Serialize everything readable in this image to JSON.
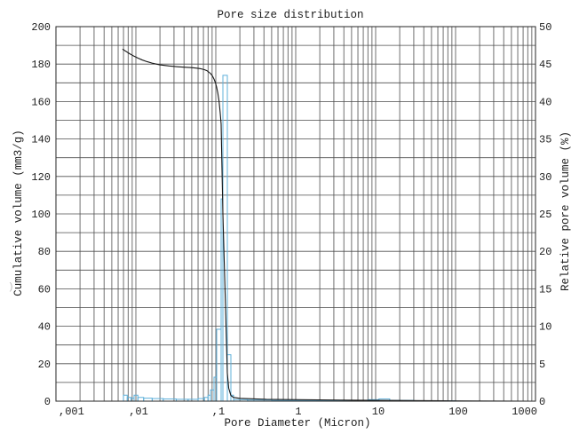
{
  "chart_data": {
    "type": "line",
    "title": "Pore size distribution",
    "xlabel": "Pore Diameter (Micron)",
    "ylabel": "Cumulative volume (mm3/g)",
    "y2label": "Relative pore volume (%)",
    "x_axis": {
      "scale": "log",
      "range": [
        0.001,
        1000
      ],
      "ticks": [
        0.001,
        0.01,
        0.1,
        1,
        10,
        100,
        1000
      ],
      "tick_labels": [
        ",001",
        ",01",
        ",1",
        "1",
        "10",
        "100",
        "1000"
      ]
    },
    "y_axis": {
      "range": [
        0,
        200
      ],
      "ticks": [
        0,
        20,
        40,
        60,
        80,
        100,
        120,
        140,
        160,
        180,
        200
      ]
    },
    "y2_axis": {
      "range": [
        0,
        50
      ],
      "ticks": [
        0,
        5,
        10,
        15,
        20,
        25,
        30,
        35,
        40,
        45,
        50
      ]
    },
    "grid": {
      "shown": true,
      "x_minor": true,
      "y_step": 10
    },
    "series": [
      {
        "type": "line",
        "axis": "left",
        "color": "#161616",
        "x": [
          0.0068,
          0.0075,
          0.0083,
          0.0093,
          0.0105,
          0.012,
          0.0138,
          0.016,
          0.02,
          0.026,
          0.033,
          0.042,
          0.05,
          0.058,
          0.065,
          0.072,
          0.078,
          0.0858,
          0.091,
          0.095,
          0.099,
          0.1026,
          0.106,
          0.11,
          0.1135,
          0.1166,
          0.119,
          0.1227,
          0.13,
          0.1394,
          0.145,
          0.1545,
          0.1668,
          0.2,
          0.43,
          5.6,
          70,
          900
        ],
        "y": [
          188.0,
          186.8,
          185.6,
          184.4,
          183.3,
          182.2,
          181.3,
          180.5,
          179.6,
          179.0,
          178.6,
          178.3,
          178.1,
          177.8,
          177.5,
          177.0,
          176.4,
          175.0,
          173.6,
          172.0,
          170.0,
          167.5,
          164.5,
          160.0,
          154.0,
          148.0,
          128.0,
          100.0,
          62.0,
          15.0,
          7.0,
          3.0,
          2.0,
          1.5,
          1.0,
          0.5,
          0.2,
          0.0
        ]
      },
      {
        "type": "bar",
        "axis": "right",
        "color": "#5fb0da",
        "bins": [
          {
            "from": 0.007,
            "to": 0.0078,
            "value": 0.8
          },
          {
            "from": 0.0078,
            "to": 0.0087,
            "value": 0.5
          },
          {
            "from": 0.0087,
            "to": 0.0095,
            "value": 0.4
          },
          {
            "from": 0.0095,
            "to": 0.0106,
            "value": 0.8
          },
          {
            "from": 0.0106,
            "to": 0.0125,
            "value": 0.5
          },
          {
            "from": 0.0125,
            "to": 0.016,
            "value": 0.4
          },
          {
            "from": 0.016,
            "to": 0.022,
            "value": 0.35
          },
          {
            "from": 0.022,
            "to": 0.032,
            "value": 0.3
          },
          {
            "from": 0.032,
            "to": 0.045,
            "value": 0.25
          },
          {
            "from": 0.045,
            "to": 0.06,
            "value": 0.25
          },
          {
            "from": 0.06,
            "to": 0.072,
            "value": 0.35
          },
          {
            "from": 0.072,
            "to": 0.08,
            "value": 0.5
          },
          {
            "from": 0.08,
            "to": 0.0858,
            "value": 0.8
          },
          {
            "from": 0.0858,
            "to": 0.095,
            "value": 1.5
          },
          {
            "from": 0.095,
            "to": 0.1026,
            "value": 3.2
          },
          {
            "from": 0.1026,
            "to": 0.1166,
            "value": 9.6
          },
          {
            "from": 0.1166,
            "to": 0.1227,
            "value": 27.0
          },
          {
            "from": 0.1227,
            "to": 0.1394,
            "value": 43.5
          },
          {
            "from": 0.1394,
            "to": 0.1545,
            "value": 6.2
          },
          {
            "from": 0.1545,
            "to": 0.1668,
            "value": 0.8
          },
          {
            "from": 0.1668,
            "to": 0.25,
            "value": 0.2
          },
          {
            "from": 0.25,
            "to": 0.5,
            "value": 0.15
          },
          {
            "from": 0.5,
            "to": 2,
            "value": 0.1
          },
          {
            "from": 2,
            "to": 8,
            "value": 0.1
          },
          {
            "from": 8,
            "to": 11,
            "value": 0.2
          },
          {
            "from": 11,
            "to": 15,
            "value": 0.3
          },
          {
            "from": 15,
            "to": 30,
            "value": 0.1
          },
          {
            "from": 30,
            "to": 100,
            "value": 0.05
          }
        ]
      }
    ]
  },
  "colors": {
    "grid": "#4d4d4d",
    "frame": "#262626"
  },
  "margin_mark": ")"
}
